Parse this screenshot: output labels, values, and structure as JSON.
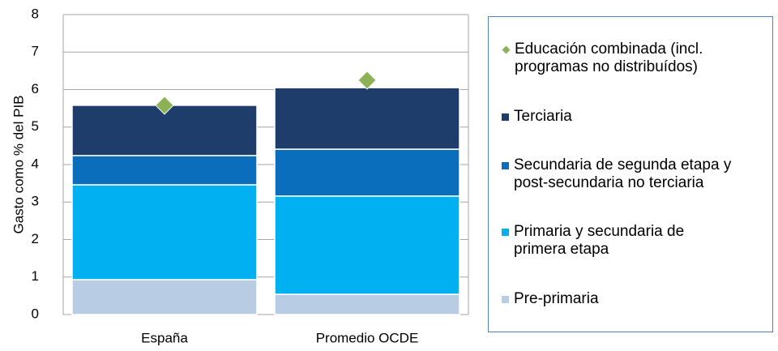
{
  "chart_data": {
    "type": "bar",
    "stacked": true,
    "y_label": "Gasto como % del PIB",
    "categories": [
      "España",
      "Promedio OCDE"
    ],
    "series": [
      {
        "name": "Pre-primaria",
        "color": "#b8cce4",
        "values": [
          0.93,
          0.54
        ]
      },
      {
        "name": "Primaria y secundaria de primera etapa",
        "color": "#00b0f0",
        "values": [
          2.53,
          2.62
        ]
      },
      {
        "name": "Secundaria de segunda etapa y post-secundaria no terciaria",
        "color": "#0a6ebd",
        "values": [
          0.78,
          1.25
        ]
      },
      {
        "name": "Terciaria",
        "color": "#1f3d6b",
        "values": [
          1.34,
          1.64
        ]
      },
      {
        "name": "Educación combinada (incl. programas no distribuídos)",
        "color": "#8db255",
        "type": "scatter",
        "marker": "diamond",
        "values": [
          5.58,
          6.25
        ]
      }
    ],
    "ylim": [
      0,
      8
    ],
    "yticks": [
      0,
      1,
      2,
      3,
      4,
      5,
      6,
      7,
      8
    ],
    "grid": true,
    "legend": "right"
  }
}
